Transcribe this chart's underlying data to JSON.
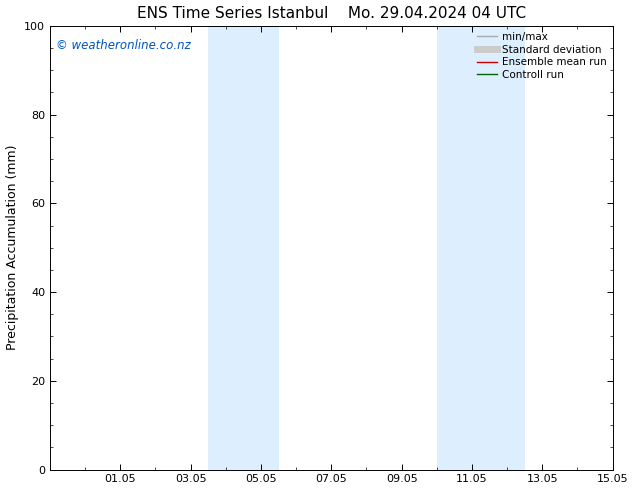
{
  "title1": "ENS Time Series Istanbul",
  "title2": "Mo. 29.04.2024 04 UTC",
  "ylabel": "Precipitation Accumulation (mm)",
  "ylim": [
    0,
    100
  ],
  "yticks": [
    0,
    20,
    40,
    60,
    80,
    100
  ],
  "xlim": [
    0,
    16
  ],
  "xtick_positions": [
    2,
    4,
    6,
    8,
    10,
    12,
    14,
    16
  ],
  "xtick_labels": [
    "01.05",
    "03.05",
    "05.05",
    "07.05",
    "09.05",
    "11.05",
    "13.05",
    "15.05"
  ],
  "shaded_regions": [
    {
      "x_start": 4.5,
      "x_end": 6.5,
      "color": "#ddeeff"
    },
    {
      "x_start": 11.0,
      "x_end": 13.5,
      "color": "#ddeeff"
    }
  ],
  "watermark_text": "© weatheronline.co.nz",
  "watermark_color": "#0055bb",
  "watermark_fontsize": 8.5,
  "background_color": "#ffffff",
  "legend_items": [
    {
      "label": "min/max",
      "color": "#aaaaaa",
      "lw": 1.0
    },
    {
      "label": "Standard deviation",
      "color": "#cccccc",
      "lw": 5
    },
    {
      "label": "Ensemble mean run",
      "color": "#cc0000",
      "lw": 1.0
    },
    {
      "label": "Controll run",
      "color": "#006600",
      "lw": 1.0
    }
  ],
  "title_fontsize": 11,
  "axis_label_fontsize": 9,
  "tick_fontsize": 8,
  "legend_fontsize": 7.5
}
